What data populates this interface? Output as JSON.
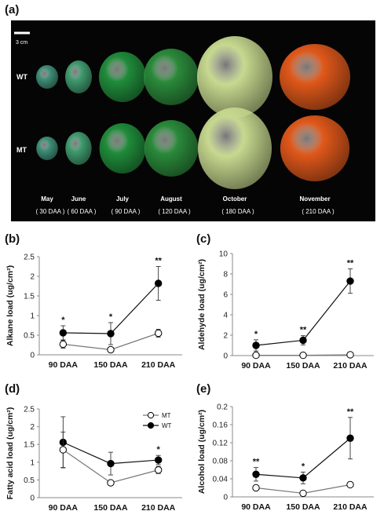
{
  "figure": {
    "panel_labels": [
      "(a)",
      "(b)",
      "(c)",
      "(d)",
      "(e)"
    ]
  },
  "photo": {
    "scale_bar_label": "3 cm",
    "row_labels": [
      "WT",
      "MT"
    ],
    "stages": [
      {
        "month": "May",
        "daa": "( 30 DAA )"
      },
      {
        "month": "June",
        "daa": "( 60 DAA )"
      },
      {
        "month": "July",
        "daa": "( 90 DAA )"
      },
      {
        "month": "August",
        "daa": "( 120 DAA )"
      },
      {
        "month": "October",
        "daa": "( 180 DAA )"
      },
      {
        "month": "November",
        "daa": "( 210 DAA )"
      }
    ],
    "colors": {
      "background": "#050505",
      "stage_colors": [
        "#3f8f78",
        "#3f9b6f",
        "#1f8c3a",
        "#2a8a3a",
        "#c7d98f",
        "#e0581a"
      ],
      "label_text": "#ffffff"
    }
  },
  "chart_data": [
    {
      "panel": "(b)",
      "type": "line",
      "categories": [
        "90 DAA",
        "150 DAA",
        "210 DAA"
      ],
      "ylabel": "Alkane load (ug/cm²)",
      "ylim": [
        0,
        2.5
      ],
      "yticks": [
        "0",
        "0.5",
        "1",
        "1.5",
        "2",
        "2.5"
      ],
      "series": [
        {
          "key": "WT",
          "values": [
            0.56,
            0.54,
            1.82
          ],
          "err": [
            0.18,
            0.28,
            0.43
          ],
          "marker": "filled"
        },
        {
          "key": "MT",
          "values": [
            0.27,
            0.13,
            0.55
          ],
          "err": [
            0.1,
            0.05,
            0.1
          ],
          "marker": "open"
        }
      ],
      "significance": [
        "*",
        "*",
        "**"
      ]
    },
    {
      "panel": "(c)",
      "type": "line",
      "categories": [
        "90 DAA",
        "150 DAA",
        "210 DAA"
      ],
      "ylabel": "Aldehyde load (ug/cm²)",
      "ylim": [
        0,
        10
      ],
      "yticks": [
        "0",
        "2",
        "4",
        "6",
        "8",
        "10"
      ],
      "series": [
        {
          "key": "WT",
          "values": [
            1.0,
            1.5,
            7.3
          ],
          "err": [
            0.55,
            0.45,
            1.2
          ],
          "marker": "filled"
        },
        {
          "key": "MT",
          "values": [
            0.03,
            0.03,
            0.08
          ],
          "err": [
            0.02,
            0.02,
            0.03
          ],
          "marker": "open"
        }
      ],
      "significance": [
        "*",
        "**",
        "**"
      ]
    },
    {
      "panel": "(d)",
      "type": "line",
      "categories": [
        "90 DAA",
        "150 DAA",
        "210 DAA"
      ],
      "ylabel": "Fatty acid load (ug/cm²)",
      "ylim": [
        0,
        2.5
      ],
      "yticks": [
        "0",
        "0.5",
        "1",
        "1.5",
        "2",
        "2.5"
      ],
      "legend": {
        "placement": "top-right",
        "entries": [
          "MT",
          "WT"
        ]
      },
      "series": [
        {
          "key": "WT",
          "name": "WT",
          "values": [
            1.56,
            0.96,
            1.06
          ],
          "err": [
            0.72,
            0.32,
            0.13
          ],
          "marker": "filled"
        },
        {
          "key": "MT",
          "name": "MT",
          "values": [
            1.35,
            0.42,
            0.78
          ],
          "err": [
            0.5,
            0.03,
            0.1
          ],
          "marker": "open"
        }
      ],
      "significance": [
        "",
        "",
        "*"
      ]
    },
    {
      "panel": "(e)",
      "type": "line",
      "categories": [
        "90 DAA",
        "150 DAA",
        "210 DAA"
      ],
      "ylabel": "Alcohol load (ug/cm²)",
      "ylim": [
        0,
        0.2
      ],
      "yticks": [
        "0",
        "0.04",
        "0.08",
        "0.12",
        "0.16",
        "0.2"
      ],
      "series": [
        {
          "key": "WT",
          "values": [
            0.05,
            0.042,
            0.13
          ],
          "err": [
            0.015,
            0.013,
            0.046
          ],
          "marker": "filled"
        },
        {
          "key": "MT",
          "values": [
            0.02,
            0.008,
            0.027
          ],
          "err": [
            0.005,
            0.003,
            0.002
          ],
          "marker": "open"
        }
      ],
      "significance": [
        "**",
        "*",
        "**"
      ]
    }
  ]
}
